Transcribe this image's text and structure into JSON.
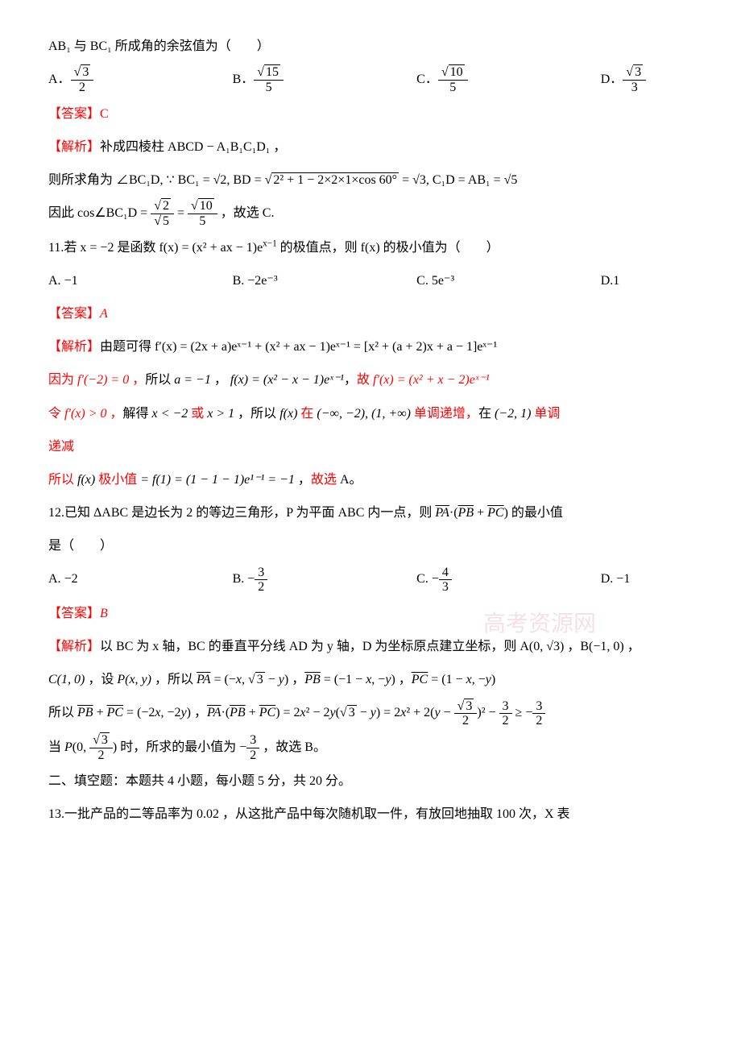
{
  "q10": {
    "stem": "AB₁ 与 BC₁ 所成角的余弦值为（　　）",
    "options": {
      "A": "√3 / 2",
      "B": "√15 / 5",
      "C": "√10 / 5",
      "D": "√3 / 3"
    },
    "answer_label": "【答案】",
    "answer": "C",
    "jiexi_label": "【解析】",
    "jiexi_l1": "补成四棱柱 ABCD − A₁B₁C₁D₁ ，",
    "jiexi_l2_pre": "则所求角为 ∠BC₁D, ∵ BC₁ = √2, BD = ",
    "jiexi_l2_sqrt": "2² + 1 − 2×2×1×cos 60°",
    "jiexi_l2_post": " = √3, C₁D = AB₁ = √5",
    "jiexi_l3_pre": "因此 cos∠BC₁D = ",
    "jiexi_l3_post": " ，故选 C."
  },
  "q11": {
    "stem_pre": "11.若 x = −2 是函数 f(x) = (x² + ax − 1)e",
    "stem_sup": "x−1",
    "stem_post": " 的极值点，则 f(x) 的极小值为（　　）",
    "options": {
      "A": "−1",
      "B": "−2e⁻³",
      "C": "5e⁻³",
      "D": "1"
    },
    "answer_label": "【答案】",
    "answer": "A",
    "jiexi_label": "【解析】",
    "jiexi_l1": "由题可得 f′(x) = (2x + a)eˣ⁻¹ + (x² + ax − 1)eˣ⁻¹ = [x² + (a + 2)x + a − 1]eˣ⁻¹",
    "jiexi_l2": "因为 f′(−2) = 0 ，所以 a = −1 ， f(x) = (x² − x − 1)eˣ⁻¹，故 f′(x) = (x² + x − 2)eˣ⁻¹",
    "jiexi_l3": "令 f′(x) > 0 ，解得 x < −2 或 x > 1 ，所以 f(x) 在 (−∞, −2), (1, +∞) 单调递增，在 (−2, 1) 单调",
    "jiexi_l4": "递减",
    "jiexi_l5": "所以 f(x) 极小值 = f(1) = (1 − 1 − 1)e¹⁻¹ = −1 ，故选 A。"
  },
  "q12": {
    "stem_pre": "12.已知 ΔABC 是边长为 2 的等边三角形，P 为平面 ABC 内一点，则 ",
    "stem_vec": "PA·(PB + PC)",
    "stem_post": " 的最小值",
    "stem_l2": "是（　　）",
    "options": {
      "A": "−2",
      "B": "−3/2",
      "C": "−4/3",
      "D": "−1"
    },
    "answer_label": "【答案】",
    "answer": "B",
    "jiexi_label": "【解析】",
    "jiexi_l1": "以 BC 为 x 轴，BC 的垂直平分线 AD 为 y 轴，D 为坐标原点建立坐标，则 A(0, √3) ，B(−1, 0) ，",
    "jiexi_l2_pre": "C(1, 0) ，设 P(x, y) ，所以 ",
    "jiexi_l2_pa": "PA = (−x, √3 − y)",
    "jiexi_l2_pb": "PB = (−1 − x, −y)",
    "jiexi_l2_pc": "PC = (1 − x, −y)",
    "jiexi_l3_pre": "所以 ",
    "jiexi_l3_sum": "PB + PC = (−2x, −2y)",
    "jiexi_l3_mid": "， ",
    "jiexi_l3_dot": "PA·(PB + PC) = 2x² − 2y(√3 − y) = 2x² + 2(y − √3/2)² − 3/2 ≥ −3/2",
    "jiexi_l4_pre": "当 P(0, ",
    "jiexi_l4_mid": ") 时，所求的最小值为 −",
    "jiexi_l4_post": " ，故选 B。"
  },
  "section2": "二、填空题：本题共 4 小题，每小题 5 分，共 20 分。",
  "q13": "13.一批产品的二等品率为 0.02 ，从这批产品中每次随机取一件，有放回地抽取 100 次，X 表",
  "watermark": "高考资源网",
  "colors": {
    "red": "#ff0000",
    "black": "#000000",
    "watermark": "#f5e0e8"
  }
}
